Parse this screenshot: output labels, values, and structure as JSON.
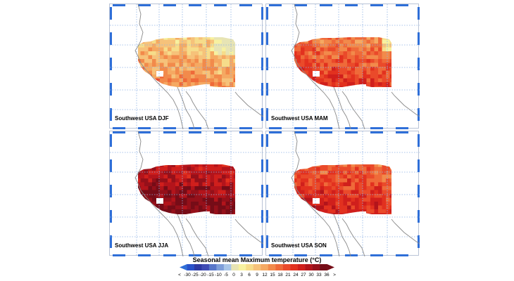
{
  "panels": [
    {
      "label": "Southwest USA DJF",
      "season": "DJF"
    },
    {
      "label": "Southwest USA MAM",
      "season": "MAM"
    },
    {
      "label": "Southwest USA JJA",
      "season": "JJA"
    },
    {
      "label": "Southwest USA SON",
      "season": "SON"
    }
  ],
  "legend": {
    "title": "Seasonal mean Maximum temperature (°C)",
    "ticks": [
      "<",
      "-30",
      "-25",
      "-20",
      "-15",
      "-10",
      "-5",
      "0",
      "3",
      "6",
      "9",
      "12",
      "15",
      "18",
      "21",
      "24",
      "27",
      "30",
      "33",
      "36",
      ">"
    ],
    "colors": [
      "#2f6fd8",
      "#2a52c9",
      "#2e3aa3",
      "#3f4cb4",
      "#5877c9",
      "#7e9ed9",
      "#a8c5e8",
      "#e7e4b4",
      "#f7f1a0",
      "#f6dc8a",
      "#f6c27a",
      "#f5a962",
      "#f28a4b",
      "#ef6a39",
      "#ea4a2a",
      "#e2311f",
      "#d01f1c",
      "#b3141b",
      "#95101a",
      "#760c17"
    ]
  },
  "colors": {
    "grid": "#8fb2e5",
    "frame_tick": "#2f6fd8",
    "coast": "#8a8a8a"
  }
}
